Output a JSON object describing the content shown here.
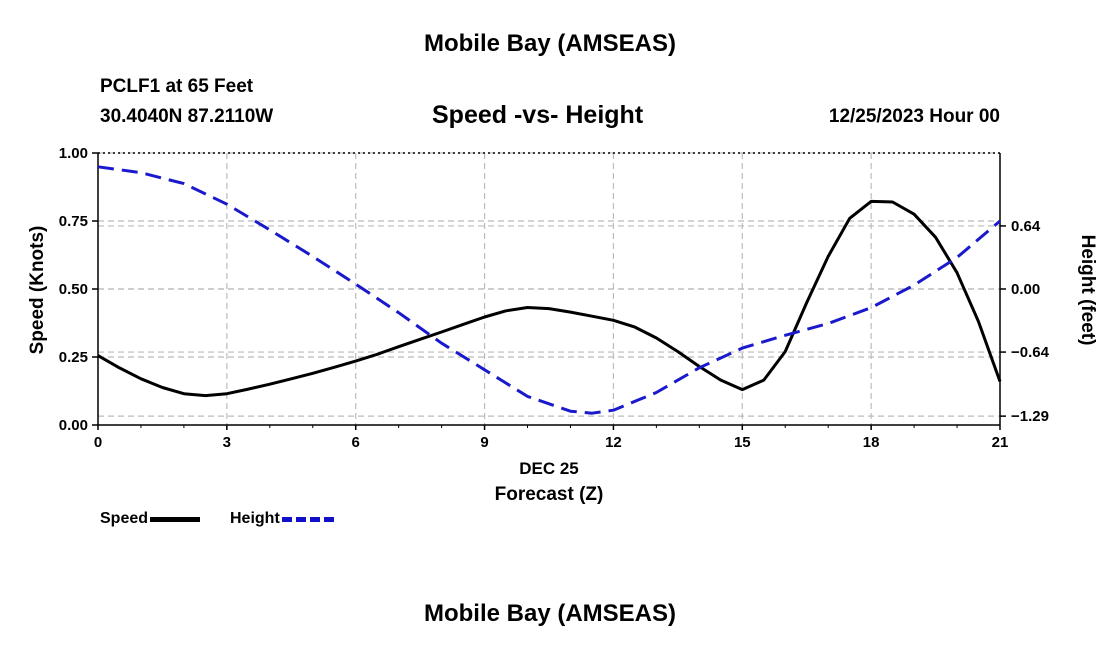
{
  "header": {
    "title": "Mobile Bay (AMSEAS)",
    "station": "PCLF1 at 65 Feet",
    "coords": "30.4040N  87.2110W",
    "subtitle": "Speed -vs- Height",
    "datetime": "12/25/2023 Hour 00",
    "footer_title": "Mobile Bay (AMSEAS)"
  },
  "legend": {
    "speed_label": "Speed",
    "height_label": "Height"
  },
  "colors": {
    "speed": "#000000",
    "height": "#1a1acc",
    "grid": "#bbbbbb"
  },
  "chart_data": {
    "type": "line",
    "title": "Speed -vs- Height",
    "xlabel": "Forecast (Z)",
    "xdate_label": "DEC 25",
    "ylabel": "Speed (Knots)",
    "y2label": "Height (feet)",
    "xlim": [
      0,
      21
    ],
    "ylim": [
      0,
      1
    ],
    "y2lim": [
      -1.38,
      1.38
    ],
    "x_ticks": [
      0,
      3,
      6,
      9,
      12,
      15,
      18,
      21
    ],
    "x_tick_labels": [
      "0",
      "3",
      "6",
      "9",
      "12",
      "15",
      "18",
      "21"
    ],
    "y_ticks": [
      0,
      0.25,
      0.5,
      0.75,
      1.0
    ],
    "y_tick_labels": [
      "0.00",
      "0.25",
      "0.50",
      "0.75",
      "1.00"
    ],
    "y2_ticks": [
      -1.29,
      -0.64,
      0.0,
      0.64
    ],
    "y2_tick_labels": [
      "−1.29",
      "−0.64",
      "0.00",
      "0.64"
    ],
    "grid": true,
    "series": [
      {
        "name": "Speed",
        "axis": "left",
        "style": "solid",
        "x": [
          0,
          0.5,
          1,
          1.5,
          2,
          2.5,
          3,
          3.5,
          4,
          4.5,
          5,
          5.5,
          6,
          6.5,
          7,
          7.5,
          8,
          8.5,
          9,
          9.5,
          10,
          10.5,
          11,
          11.5,
          12,
          12.5,
          13,
          13.5,
          14,
          14.5,
          15,
          15.5,
          16,
          16.5,
          17,
          17.5,
          18,
          18.5,
          19,
          19.5,
          20,
          20.5,
          21
        ],
        "values": [
          0.255,
          0.21,
          0.17,
          0.138,
          0.115,
          0.108,
          0.115,
          0.132,
          0.15,
          0.17,
          0.19,
          0.212,
          0.235,
          0.26,
          0.288,
          0.315,
          0.342,
          0.37,
          0.397,
          0.42,
          0.432,
          0.428,
          0.415,
          0.4,
          0.385,
          0.36,
          0.32,
          0.27,
          0.215,
          0.165,
          0.13,
          0.165,
          0.27,
          0.45,
          0.62,
          0.76,
          0.822,
          0.82,
          0.775,
          0.69,
          0.56,
          0.38,
          0.16
        ]
      },
      {
        "name": "Height",
        "axis": "right",
        "style": "dashed",
        "x": [
          0,
          1,
          2,
          3,
          4,
          5,
          6,
          7,
          8,
          9,
          10,
          11,
          11.5,
          12,
          13,
          14,
          15,
          16,
          17,
          18,
          19,
          20,
          21
        ],
        "values": [
          1.24,
          1.18,
          1.07,
          0.86,
          0.6,
          0.33,
          0.05,
          -0.24,
          -0.55,
          -0.82,
          -1.09,
          -1.24,
          -1.26,
          -1.23,
          -1.05,
          -0.8,
          -0.6,
          -0.47,
          -0.35,
          -0.19,
          0.04,
          0.32,
          0.69
        ]
      }
    ]
  }
}
